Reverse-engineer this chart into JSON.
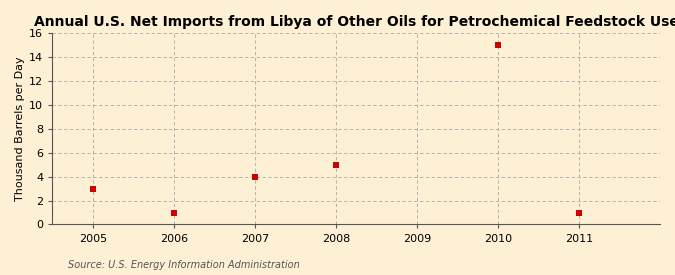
{
  "title": "Annual U.S. Net Imports from Libya of Other Oils for Petrochemical Feedstock Use",
  "ylabel": "Thousand Barrels per Day",
  "source": "Source: U.S. Energy Information Administration",
  "x_years": [
    2005,
    2006,
    2007,
    2008,
    2010,
    2011
  ],
  "y_values": [
    3,
    1,
    4,
    5,
    15,
    1
  ],
  "x_ticks": [
    2005,
    2006,
    2007,
    2008,
    2009,
    2010,
    2011
  ],
  "x_lim": [
    2004.5,
    2012.0
  ],
  "y_lim": [
    0,
    16
  ],
  "y_ticks": [
    0,
    2,
    4,
    6,
    8,
    10,
    12,
    14,
    16
  ],
  "marker_color": "#cc0000",
  "marker_size": 4,
  "marker_style": "s",
  "bg_color": "#fdf0d5",
  "grid_color": "#aaaaaa",
  "title_fontsize": 10,
  "label_fontsize": 8,
  "tick_fontsize": 8,
  "source_fontsize": 7
}
